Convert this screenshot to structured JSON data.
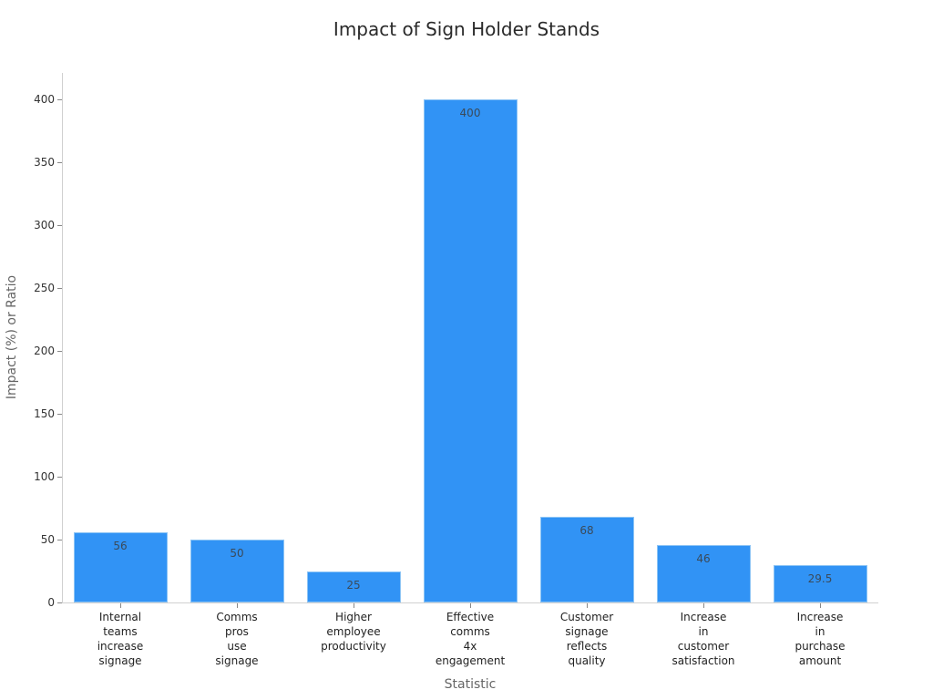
{
  "chart_data": {
    "type": "bar",
    "title": "Impact of Sign Holder Stands",
    "xlabel": "Statistic",
    "ylabel": "Impact (%) or Ratio",
    "ylim": [
      0,
      420
    ],
    "yticks": [
      0,
      50,
      100,
      150,
      200,
      250,
      300,
      350,
      400
    ],
    "grid": false,
    "legend": null,
    "categories": [
      "Internal teams increase signage",
      "Comms pros use signage",
      "Higher employee productivity",
      "Effective comms 4x engagement",
      "Customer signage reflects quality",
      "Increase in customer satisfaction",
      "Increase in purchase amount"
    ],
    "category_lines": [
      [
        "Internal",
        "teams",
        "increase",
        "signage"
      ],
      [
        "Comms",
        "pros",
        "use",
        "signage"
      ],
      [
        "Higher",
        "employee",
        "productivity"
      ],
      [
        "Effective",
        "comms",
        "4x",
        "engagement"
      ],
      [
        "Customer",
        "signage",
        "reflects",
        "quality"
      ],
      [
        "Increase",
        "in",
        "customer",
        "satisfaction"
      ],
      [
        "Increase",
        "in",
        "purchase",
        "amount"
      ]
    ],
    "values": [
      56,
      50,
      25,
      400,
      68,
      46,
      29.5
    ],
    "value_labels": [
      "56",
      "50",
      "25",
      "400",
      "68",
      "46",
      "29.5"
    ],
    "bar_color": "#3193f5"
  }
}
